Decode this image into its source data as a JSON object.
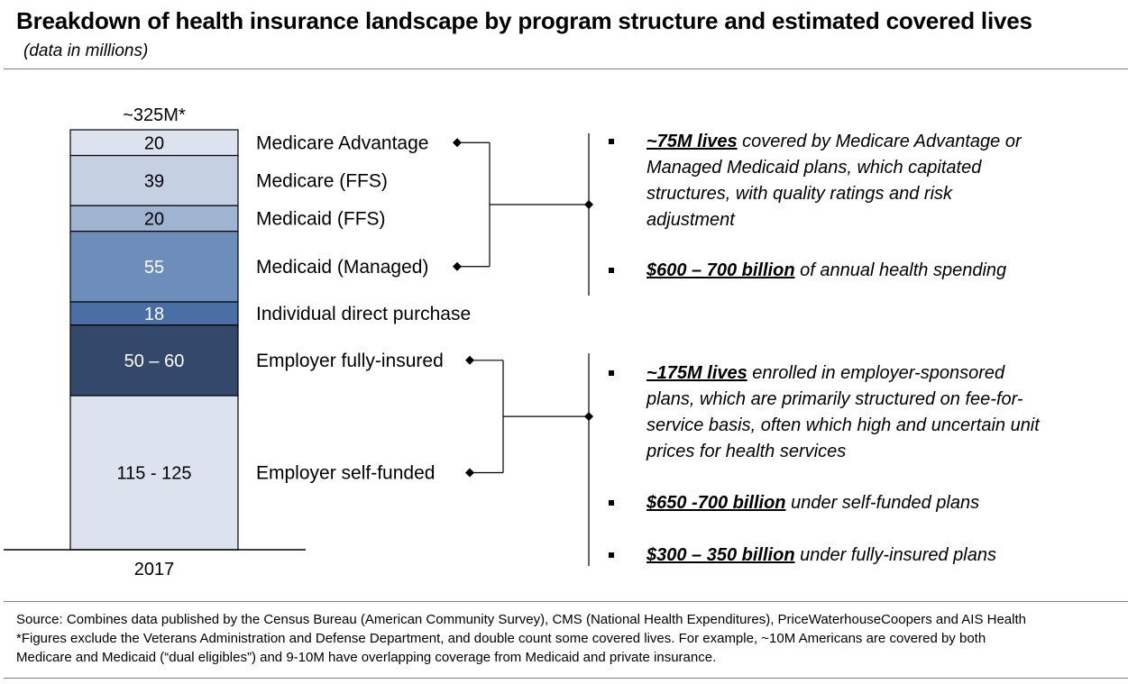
{
  "title": "Breakdown of health insurance landscape by program structure and estimated covered lives",
  "subtitle": "(data in millions)",
  "chart_data": {
    "type": "bar",
    "stacked": true,
    "x_label": "2017",
    "total_label": "~325M*",
    "segments": [
      {
        "label": "Employer self-funded",
        "value_label": "115 - 125",
        "value": 120,
        "color": "#dde3ee",
        "text_color": "#000000"
      },
      {
        "label": "Employer fully-insured",
        "value_label": "50 – 60",
        "value": 55,
        "color": "#33486b",
        "text_color": "#ffffff"
      },
      {
        "label": "Individual direct purchase",
        "value_label": "18",
        "value": 18,
        "color": "#4a6fa5",
        "text_color": "#ffffff"
      },
      {
        "label": "Medicaid (Managed)",
        "value_label": "55",
        "value": 55,
        "color": "#6d8dbb",
        "text_color": "#ffffff"
      },
      {
        "label": "Medicaid (FFS)",
        "value_label": "20",
        "value": 20,
        "color": "#9fb3d3",
        "text_color": "#000000"
      },
      {
        "label": "Medicare (FFS)",
        "value_label": "39",
        "value": 39,
        "color": "#c5d0e3",
        "text_color": "#000000"
      },
      {
        "label": "Medicare Advantage",
        "value_label": "20",
        "value": 20,
        "color": "#dde3ee",
        "text_color": "#000000"
      }
    ]
  },
  "groups": [
    {
      "bullets": [
        {
          "bold": "~75M lives",
          "lines": [
            " covered by Medicare Advantage or",
            "Managed Medicaid plans, which capitated",
            "structures, with quality ratings and risk",
            "adjustment"
          ]
        },
        {
          "bold": "$600 – 700 billion",
          "lines": [
            " of annual health spending"
          ]
        }
      ]
    },
    {
      "bullets": [
        {
          "bold": "~175M lives",
          "lines": [
            " enrolled in employer-sponsored",
            "plans, which are primarily structured on fee-for-",
            "service basis, often which high and uncertain unit",
            "prices for health services"
          ]
        },
        {
          "bold": "$650 -700 billion",
          "lines": [
            " under self-funded plans"
          ]
        },
        {
          "bold": "$300 – 350 billion",
          "lines": [
            " under fully-insured plans"
          ]
        }
      ]
    }
  ],
  "footer": {
    "source": "Source: Combines data published by the Census Bureau (American Community Survey), CMS (National Health Expenditures), PriceWaterhouseCoopers and AIS Health",
    "note_1": "*Figures exclude the Veterans Administration and Defense Department, and double count some covered lives.  For example, ~10M Americans are covered by both",
    "note_2": "Medicare and Medicaid (“dual eligibles”) and 9-10M have overlapping coverage from Medicaid and private insurance."
  }
}
